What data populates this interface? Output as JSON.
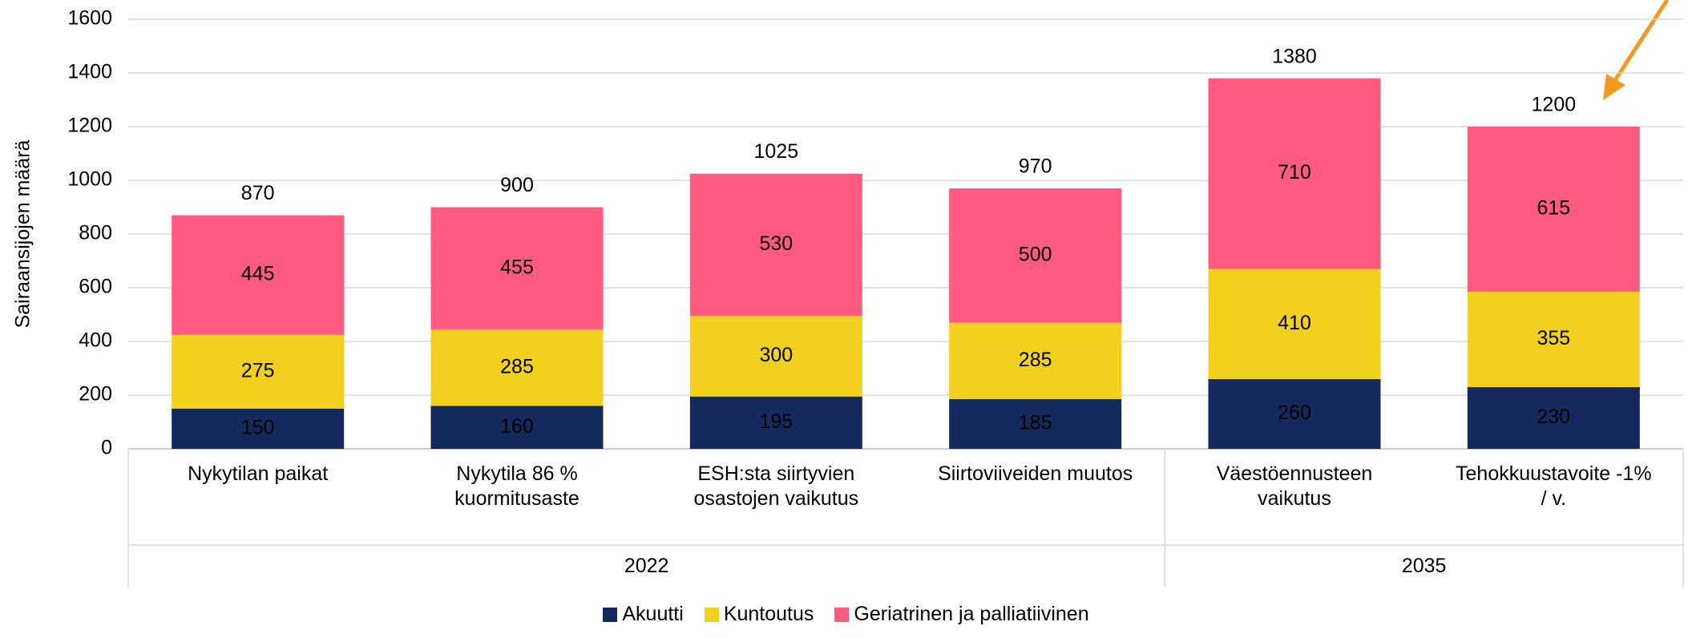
{
  "chart_data": {
    "type": "stacked-bar",
    "y_label": "Sairaansijojen määrä",
    "categories": [
      "Nykytilan paikat",
      "Nykytila 86 %\nkuormitusaste",
      "ESH:sta siirtyvien\nosastojen vaikutus",
      "Siirtoviiveiden muutos",
      "Väestöennusteen\nvaikutus",
      "Tehokkuustavoite -1%\n/ v."
    ],
    "groups": [
      {
        "label": "2022",
        "span": 4
      },
      {
        "label": "2035",
        "span": 2
      }
    ],
    "series": [
      {
        "name": "Akuutti",
        "color": "#142a5c",
        "values": [
          150,
          160,
          195,
          185,
          260,
          230
        ]
      },
      {
        "name": "Kuntoutus",
        "color": "#f2d01e",
        "values": [
          275,
          285,
          300,
          285,
          410,
          355
        ]
      },
      {
        "name": "Geriatrinen ja palliatiivinen",
        "color": "#ff5b80",
        "values": [
          445,
          455,
          530,
          500,
          710,
          615
        ]
      }
    ],
    "totals": [
      870,
      900,
      1025,
      970,
      1380,
      1200
    ],
    "ylim": [
      0,
      1600
    ],
    "yticks": [
      0,
      200,
      400,
      600,
      800,
      1000,
      1200,
      1400,
      1600
    ],
    "grid": true
  }
}
